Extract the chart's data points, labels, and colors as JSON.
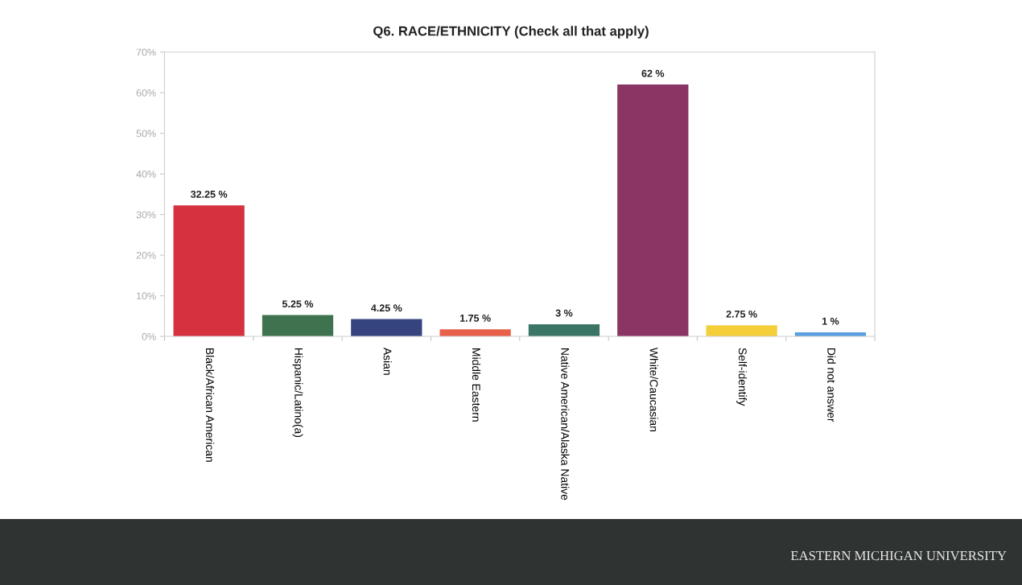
{
  "chart_data": {
    "type": "bar",
    "title": "Q6. RACE/ETHNICITY (Check all that apply)",
    "categories": [
      "Black/African American",
      "Hispanic/Latino(a)",
      "Asian",
      "Middle Eastern",
      "Native American/Alaska Native",
      "White/Caucasian",
      "Self-identify",
      "Did not answer"
    ],
    "values": [
      32.25,
      5.25,
      4.25,
      1.75,
      3,
      62,
      2.75,
      1
    ],
    "colors": [
      "#d5313f",
      "#3f7350",
      "#35447f",
      "#e8604a",
      "#3a7566",
      "#8a3563",
      "#f5cf3a",
      "#5aa0e0"
    ],
    "value_labels": [
      "32.25 %",
      "5.25 %",
      "4.25 %",
      "1.75 %",
      "3 %",
      "62 %",
      "2.75 %",
      "1 %"
    ],
    "ylim": [
      0,
      70
    ],
    "yticks": [
      {
        "value": 0,
        "label": "0%"
      },
      {
        "value": 10,
        "label": "10%"
      },
      {
        "value": 20,
        "label": "20%"
      },
      {
        "value": 30,
        "label": "30%"
      },
      {
        "value": 40,
        "label": "40%"
      },
      {
        "value": 50,
        "label": "50%"
      },
      {
        "value": 60,
        "label": "60%"
      },
      {
        "value": 70,
        "label": "70%"
      }
    ],
    "grid": false,
    "legend": false,
    "annotations": [
      "EASTERN MICHIGAN UNIVERSITY"
    ]
  }
}
